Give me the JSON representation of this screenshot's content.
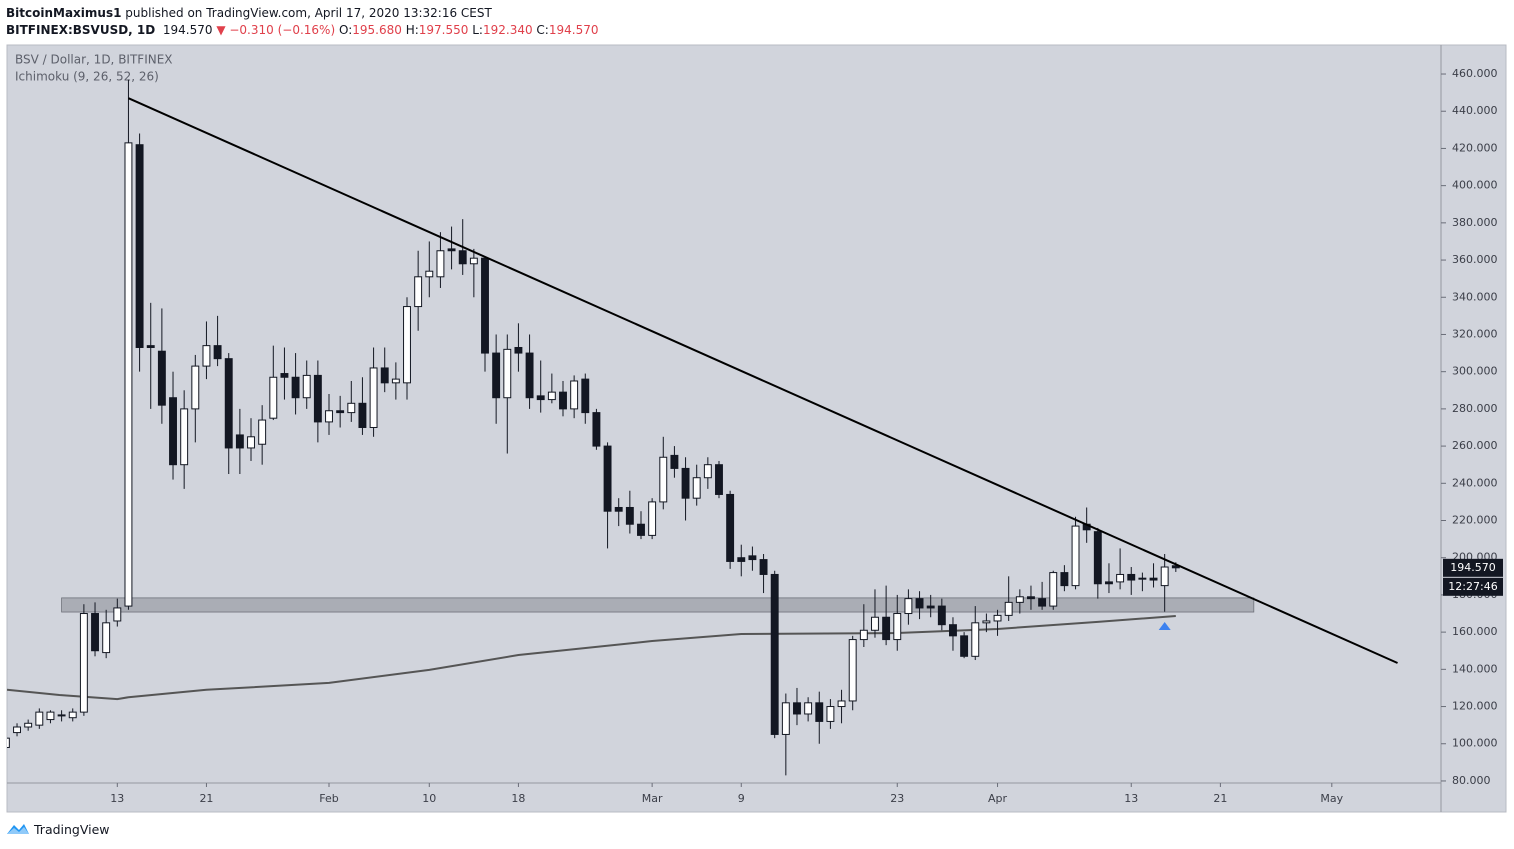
{
  "header": {
    "author": "BitcoinMaximus1",
    "published": "published on TradingView.com, April 17, 2020 13:32:16 CEST",
    "symbol": "BITFINEX:BSVUSD, 1D",
    "last": "194.570",
    "change": "▼ −0.310 (−0.16%)",
    "o_label": "O:",
    "o_value": "195.680",
    "h_label": "H:",
    "h_value": "197.550",
    "l_label": "L:",
    "l_value": "192.340",
    "c_label": "C:",
    "c_value": "194.570"
  },
  "chart_data": {
    "type": "candlestick",
    "title": "BSV / Dollar, 1D, BITFINEX",
    "subtitle": "Ichimoku (9, 26, 52, 26)",
    "x": [
      3,
      4,
      5,
      6,
      7,
      8,
      9,
      10,
      11,
      12,
      13,
      14,
      15,
      16,
      17,
      18,
      19,
      20,
      21,
      22,
      23,
      24,
      25,
      26,
      27,
      28,
      29,
      30,
      31,
      32,
      33,
      34,
      35,
      36,
      37,
      38,
      39,
      40,
      41,
      42,
      43,
      44,
      45,
      46,
      47,
      48,
      49,
      50,
      51,
      52,
      53,
      54,
      55,
      56,
      57,
      58,
      59,
      60,
      61,
      62,
      63,
      64,
      65,
      66,
      67,
      68,
      69,
      70,
      71,
      72,
      73,
      74,
      75,
      76,
      77,
      78,
      79,
      80,
      81,
      82,
      83,
      84,
      85,
      86,
      87,
      88,
      89,
      90,
      91,
      92,
      93,
      94,
      95,
      96,
      97,
      98,
      99,
      100,
      101,
      102,
      103,
      104,
      105,
      106,
      107,
      108
    ],
    "open": [
      98,
      106,
      109,
      110,
      113,
      115,
      114,
      117,
      170,
      149,
      166,
      174,
      422,
      314,
      311,
      286,
      250,
      280,
      303,
      314,
      307,
      266,
      259,
      261,
      275,
      299,
      297,
      286,
      298,
      273,
      279,
      278,
      283,
      270,
      302,
      294,
      294,
      335,
      351,
      351,
      366,
      365,
      358,
      361,
      310,
      286,
      313,
      310,
      287,
      285,
      289,
      280,
      296,
      278,
      260,
      227,
      227,
      218,
      212,
      230,
      255,
      248,
      232,
      243,
      250,
      234,
      200,
      201,
      199,
      191,
      105,
      122,
      116,
      122,
      112,
      120,
      123,
      156,
      161,
      168,
      156,
      170,
      178,
      174,
      174,
      164,
      158,
      147,
      165,
      166,
      169,
      176,
      179,
      178,
      174,
      192,
      185,
      218,
      214,
      187,
      187,
      191,
      189,
      189,
      185,
      195.68
    ],
    "high": [
      105,
      111,
      113,
      119,
      118,
      118,
      119,
      175,
      176,
      172,
      178,
      457,
      428,
      337,
      334,
      300,
      290,
      309,
      327,
      330,
      310,
      280,
      275,
      282,
      314,
      313,
      310,
      306,
      306,
      288,
      287,
      295,
      297,
      313,
      313,
      305,
      340,
      365,
      370,
      375,
      378,
      382,
      366,
      362,
      320,
      320,
      326,
      320,
      306,
      299,
      295,
      298,
      299,
      280,
      262,
      232,
      236,
      225,
      232,
      265,
      260,
      254,
      250,
      254,
      252,
      236,
      207,
      206,
      202,
      193,
      127,
      130,
      125,
      128,
      124,
      129,
      158,
      175,
      183,
      185,
      180,
      183,
      182,
      180,
      178,
      168,
      160,
      174,
      170,
      172,
      190,
      183,
      185,
      187,
      193,
      196,
      222,
      227,
      216,
      197,
      205,
      195,
      192,
      197,
      202,
      197.55
    ],
    "low": [
      95,
      104,
      107,
      108,
      111,
      112,
      112,
      115,
      147,
      146,
      163,
      172,
      300,
      280,
      272,
      242,
      237,
      262,
      296,
      303,
      245,
      245,
      252,
      250,
      274,
      285,
      277,
      280,
      262,
      266,
      270,
      273,
      266,
      265,
      289,
      285,
      285,
      322,
      340,
      345,
      355,
      352,
      340,
      300,
      272,
      256,
      300,
      280,
      278,
      283,
      276,
      275,
      272,
      258,
      205,
      217,
      213,
      210,
      210,
      226,
      243,
      220,
      228,
      237,
      232,
      194,
      190,
      193,
      181,
      103,
      83,
      110,
      112,
      100,
      108,
      111,
      118,
      152,
      157,
      153,
      150,
      164,
      167,
      168,
      161,
      150,
      146,
      145,
      160,
      158,
      166,
      170,
      172,
      172,
      172,
      182,
      183,
      208,
      178,
      181,
      183,
      180,
      182,
      184,
      171,
      192.34
    ],
    "close": [
      103,
      109,
      111,
      117,
      117,
      115.5,
      117,
      170,
      150,
      165,
      173,
      423,
      313,
      313,
      282,
      250,
      280,
      303,
      314,
      307,
      259,
      259,
      265,
      274,
      297,
      297,
      286,
      298,
      273,
      279,
      278,
      283,
      270,
      302,
      294,
      296,
      335,
      351,
      354,
      365,
      365,
      358,
      361,
      310,
      286,
      312,
      310,
      286,
      285,
      289,
      280,
      295,
      278,
      260,
      225,
      225,
      218,
      212,
      230,
      254,
      248,
      232,
      243,
      250,
      234,
      198,
      198,
      199,
      191,
      105,
      122,
      116,
      122,
      112,
      120,
      123,
      156,
      161,
      168,
      156,
      170,
      178,
      173,
      173,
      164,
      158,
      147,
      165,
      166,
      169,
      176,
      179,
      178,
      174,
      192,
      185,
      217,
      215,
      186,
      186,
      191,
      188,
      188.5,
      188,
      195,
      194.57
    ],
    "up_color": "#ffffff",
    "down_color": "#131722",
    "background": "#d1d4dc",
    "xlim": [
      3.1,
      131.8
    ],
    "ylim": [
      78.9,
      475.6
    ],
    "grid": false,
    "xticks": [
      {
        "value": 13,
        "label": "13"
      },
      {
        "value": 21,
        "label": "21"
      },
      {
        "value": 32,
        "label": "Feb"
      },
      {
        "value": 41,
        "label": "10"
      },
      {
        "value": 49,
        "label": "18"
      },
      {
        "value": 61,
        "label": "Mar"
      },
      {
        "value": 69,
        "label": "9"
      },
      {
        "value": 83,
        "label": "23"
      },
      {
        "value": 92,
        "label": "Apr"
      },
      {
        "value": 104,
        "label": "13"
      },
      {
        "value": 112,
        "label": "21"
      },
      {
        "value": 122,
        "label": "May"
      }
    ],
    "yticks": [
      {
        "value": 80,
        "label": "80.000"
      },
      {
        "value": 100,
        "label": "100.000"
      },
      {
        "value": 120,
        "label": "120.000"
      },
      {
        "value": 140,
        "label": "140.000"
      },
      {
        "value": 160,
        "label": "160.000"
      },
      {
        "value": 180,
        "label": "180.000"
      },
      {
        "value": 200,
        "label": "200.000"
      },
      {
        "value": 220,
        "label": "220.000"
      },
      {
        "value": 240,
        "label": "240.000"
      },
      {
        "value": 260,
        "label": "260.000"
      },
      {
        "value": 280,
        "label": "280.000"
      },
      {
        "value": 300,
        "label": "300.000"
      },
      {
        "value": 320,
        "label": "320.000"
      },
      {
        "value": 340,
        "label": "340.000"
      },
      {
        "value": 360,
        "label": "360.000"
      },
      {
        "value": 380,
        "label": "380.000"
      },
      {
        "value": 400,
        "label": "400.000"
      },
      {
        "value": 420,
        "label": "420.000"
      },
      {
        "value": 440,
        "label": "440.000"
      },
      {
        "value": 460,
        "label": "460.000"
      }
    ],
    "moving_average": {
      "color": "#555555",
      "x": [
        3.1,
        7.8,
        13,
        14,
        21,
        32,
        41,
        49,
        61,
        69,
        83,
        92,
        101,
        108
      ],
      "values": [
        129,
        126.2,
        124,
        125,
        129,
        132.7,
        139.7,
        147.7,
        155.2,
        159,
        159.5,
        161.7,
        165.5,
        168.7
      ]
    },
    "trendline": {
      "color": "#000000",
      "x": [
        14,
        127.9
      ],
      "values": [
        447,
        143.4
      ]
    },
    "support_zone": {
      "color": "#a3a6ae",
      "x": [
        8,
        115
      ],
      "values": [
        170.8,
        178.4
      ]
    },
    "marker": {
      "color": "#3d82f0",
      "x": 107,
      "value": 163.3
    },
    "last_price_label": "194.570",
    "countdown": "12:27:46"
  },
  "footer": {
    "brand": "TradingView"
  }
}
